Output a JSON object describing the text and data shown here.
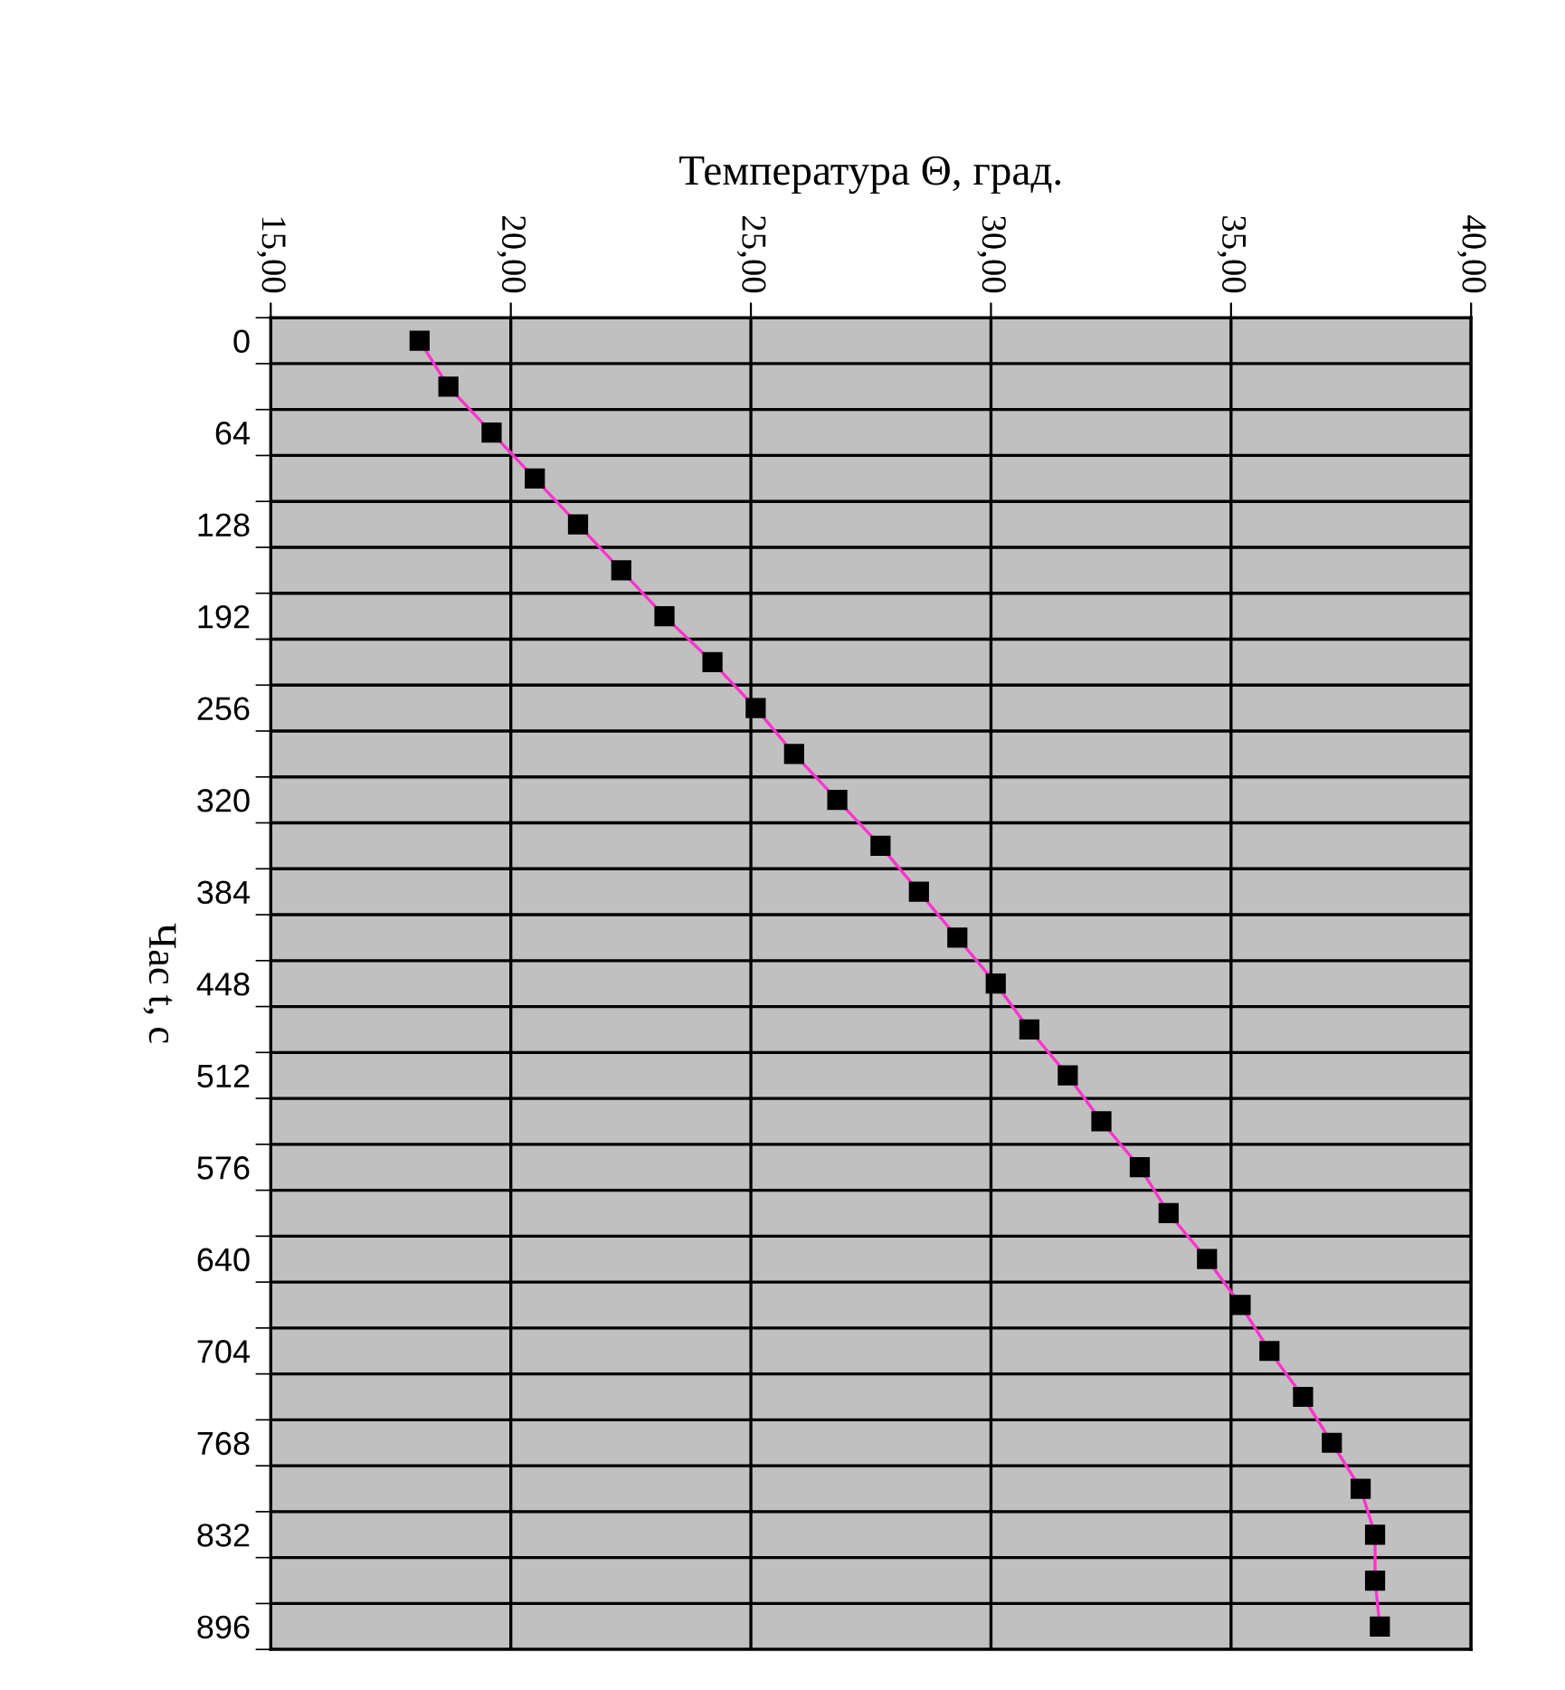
{
  "chart_data": {
    "type": "line",
    "orientation": "horizontal",
    "xlabel": "Температура Θ, град.",
    "ylabel": "Час t, с",
    "categories": [
      "0",
      null,
      "64",
      null,
      "128",
      null,
      "192",
      null,
      "256",
      null,
      "320",
      null,
      "384",
      null,
      "448",
      null,
      "512",
      null,
      "576",
      null,
      "640",
      null,
      "704",
      null,
      "768",
      null,
      "832",
      null,
      "896"
    ],
    "series": [
      {
        "color": "#ff33cc",
        "values": [
          18.1,
          18.7,
          19.6,
          20.5,
          21.4,
          22.3,
          23.2,
          24.2,
          25.1,
          25.9,
          26.8,
          27.7,
          28.5,
          29.3,
          30.1,
          30.8,
          31.6,
          32.3,
          33.1,
          33.7,
          34.5,
          35.2,
          35.8,
          36.5,
          37.1,
          37.7,
          38.0,
          38.0,
          38.1
        ]
      }
    ],
    "xlim": [
      15,
      40
    ],
    "xticks": [
      {
        "value": 15,
        "label": "15,00"
      },
      {
        "value": 20,
        "label": "20,00"
      },
      {
        "value": 25,
        "label": "25,00"
      },
      {
        "value": 30,
        "label": "30,00"
      },
      {
        "value": 35,
        "label": "35,00"
      },
      {
        "value": 40,
        "label": "40,00"
      }
    ],
    "grid": true,
    "marker": "square",
    "line_style": "solid"
  }
}
